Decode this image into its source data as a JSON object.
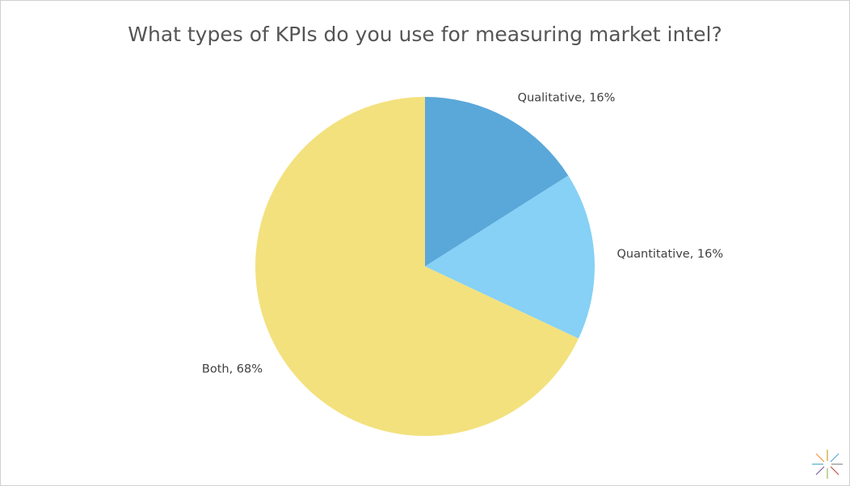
{
  "chart_data": {
    "type": "pie",
    "title": "What types of KPIs do you use for measuring market intel?",
    "values": [
      16,
      16,
      68
    ],
    "value_labels": [
      "Qualitative, 16%",
      "Quantitative, 16%",
      "Both, 68%"
    ],
    "colors": [
      "#5aa7d9",
      "#86d1f5",
      "#f3e17e"
    ]
  }
}
